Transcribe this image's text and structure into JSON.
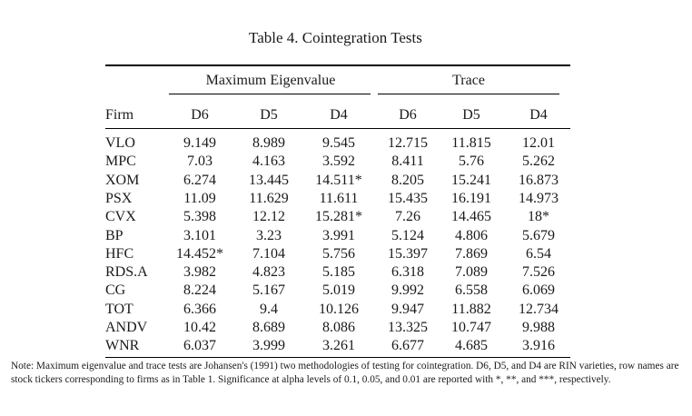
{
  "title": "Table 4. Cointegration Tests",
  "groups": {
    "left": "Maximum Eigenvalue",
    "right": "Trace"
  },
  "header": {
    "firm": "Firm",
    "columns": [
      "D6",
      "D5",
      "D4",
      "D6",
      "D5",
      "D4"
    ]
  },
  "rows": [
    {
      "firm": "VLO",
      "values": [
        "9.149",
        "8.989",
        "9.545",
        "12.715",
        "11.815",
        "12.01"
      ]
    },
    {
      "firm": "MPC",
      "values": [
        "7.03",
        "4.163",
        "3.592",
        "8.411",
        "5.76",
        "5.262"
      ]
    },
    {
      "firm": "XOM",
      "values": [
        "6.274",
        "13.445",
        "14.511*",
        "8.205",
        "15.241",
        "16.873"
      ]
    },
    {
      "firm": "PSX",
      "values": [
        "11.09",
        "11.629",
        "11.611",
        "15.435",
        "16.191",
        "14.973"
      ]
    },
    {
      "firm": "CVX",
      "values": [
        "5.398",
        "12.12",
        "15.281*",
        "7.26",
        "14.465",
        "18*"
      ]
    },
    {
      "firm": "BP",
      "values": [
        "3.101",
        "3.23",
        "3.991",
        "5.124",
        "4.806",
        "5.679"
      ]
    },
    {
      "firm": "HFC",
      "values": [
        "14.452*",
        "7.104",
        "5.756",
        "15.397",
        "7.869",
        "6.54"
      ]
    },
    {
      "firm": "RDS.A",
      "values": [
        "3.982",
        "4.823",
        "5.185",
        "6.318",
        "7.089",
        "7.526"
      ]
    },
    {
      "firm": "CG",
      "values": [
        "8.224",
        "5.167",
        "5.019",
        "9.992",
        "6.558",
        "6.069"
      ]
    },
    {
      "firm": "TOT",
      "values": [
        "6.366",
        "9.4",
        "10.126",
        "9.947",
        "11.882",
        "12.734"
      ]
    },
    {
      "firm": "ANDV",
      "values": [
        "10.42",
        "8.689",
        "8.086",
        "13.325",
        "10.747",
        "9.988"
      ]
    },
    {
      "firm": "WNR",
      "values": [
        "6.037",
        "3.999",
        "3.261",
        "6.677",
        "4.685",
        "3.916"
      ]
    }
  ],
  "note": "Note: Maximum eigenvalue and trace tests are Johansen's (1991) two methodologies of testing for cointegration. D6, D5, and D4 are RIN varieties, row names are stock tickers corresponding to firms as in Table 1. Significance at alpha levels of 0.1, 0.05, and 0.01 are reported with *, **, and ***, respectively."
}
